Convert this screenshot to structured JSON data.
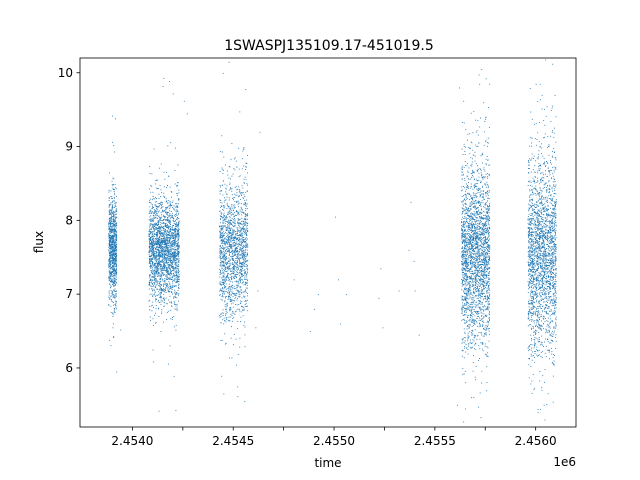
{
  "chart_data": {
    "type": "scatter",
    "title": "1SWASPJ135109.17-451019.5",
    "xlabel": "time",
    "ylabel": "flux",
    "x_offset_label": "1e6",
    "xlim": [
      2453740,
      2456200
    ],
    "ylim": [
      5.2,
      10.2
    ],
    "x_ticks": [
      2454000,
      2454250,
      2454500,
      2454750,
      2455000,
      2455250,
      2455500,
      2455750,
      2456000
    ],
    "x_tick_labels": [
      "2.4540",
      "",
      "2.4545",
      "",
      "2.4550",
      "",
      "2.4555",
      "",
      "2.4560"
    ],
    "y_ticks": [
      6,
      7,
      8,
      9,
      10
    ],
    "y_tick_labels": [
      "6",
      "7",
      "8",
      "9",
      "10"
    ],
    "grid": false,
    "marker_color": "#1f77b4",
    "series": [
      {
        "clusters": [
          {
            "x_range": [
              2453880,
              2453920
            ],
            "y_center": 7.6,
            "spread": 0.35,
            "n": 900
          },
          {
            "x_range": [
              2454080,
              2454230
            ],
            "y_center": 7.6,
            "spread": 0.35,
            "n": 2200
          },
          {
            "x_range": [
              2454430,
              2454570
            ],
            "y_center": 7.6,
            "spread": 0.45,
            "n": 1600
          },
          {
            "x_range": [
              2455630,
              2455770
            ],
            "y_center": 7.55,
            "spread": 0.6,
            "n": 2400
          },
          {
            "x_range": [
              2455960,
              2456100
            ],
            "y_center": 7.55,
            "spread": 0.65,
            "n": 2200
          }
        ],
        "scattered": [
          [
            2453899,
            9.42
          ],
          [
            2453920,
            5.95
          ],
          [
            2453940,
            6.52
          ],
          [
            2453885,
            6.38
          ],
          [
            2453905,
            9.02
          ],
          [
            2454150,
            9.82
          ],
          [
            2454130,
            5.42
          ],
          [
            2454200,
            9.72
          ],
          [
            2454255,
            9.62
          ],
          [
            2454270,
            9.45
          ],
          [
            2454100,
            6.25
          ],
          [
            2454560,
            9.78
          ],
          [
            2454555,
            5.55
          ],
          [
            2454520,
            5.75
          ],
          [
            2454610,
            6.55
          ],
          [
            2454630,
            9.2
          ],
          [
            2454620,
            7.05
          ],
          [
            2454800,
            7.2
          ],
          [
            2454880,
            6.5
          ],
          [
            2454900,
            6.8
          ],
          [
            2454920,
            7.0
          ],
          [
            2455005,
            8.05
          ],
          [
            2455020,
            7.2
          ],
          [
            2455030,
            6.6
          ],
          [
            2455060,
            7.0
          ],
          [
            2455230,
            7.35
          ],
          [
            2455240,
            6.55
          ],
          [
            2455220,
            6.95
          ],
          [
            2455320,
            7.05
          ],
          [
            2455370,
            7.6
          ],
          [
            2455380,
            8.25
          ],
          [
            2455395,
            7.45
          ],
          [
            2455400,
            7.05
          ],
          [
            2455420,
            6.45
          ],
          [
            2455610,
            5.5
          ],
          [
            2455620,
            9.8
          ],
          [
            2455650,
            5.45
          ],
          [
            2455720,
            9.85
          ],
          [
            2455740,
            9.6
          ],
          [
            2455770,
            9.85
          ],
          [
            2456000,
            9.85
          ],
          [
            2456020,
            9.85
          ],
          [
            2456010,
            5.4
          ],
          [
            2456040,
            5.5
          ],
          [
            2456030,
            9.7
          ]
        ]
      }
    ]
  }
}
